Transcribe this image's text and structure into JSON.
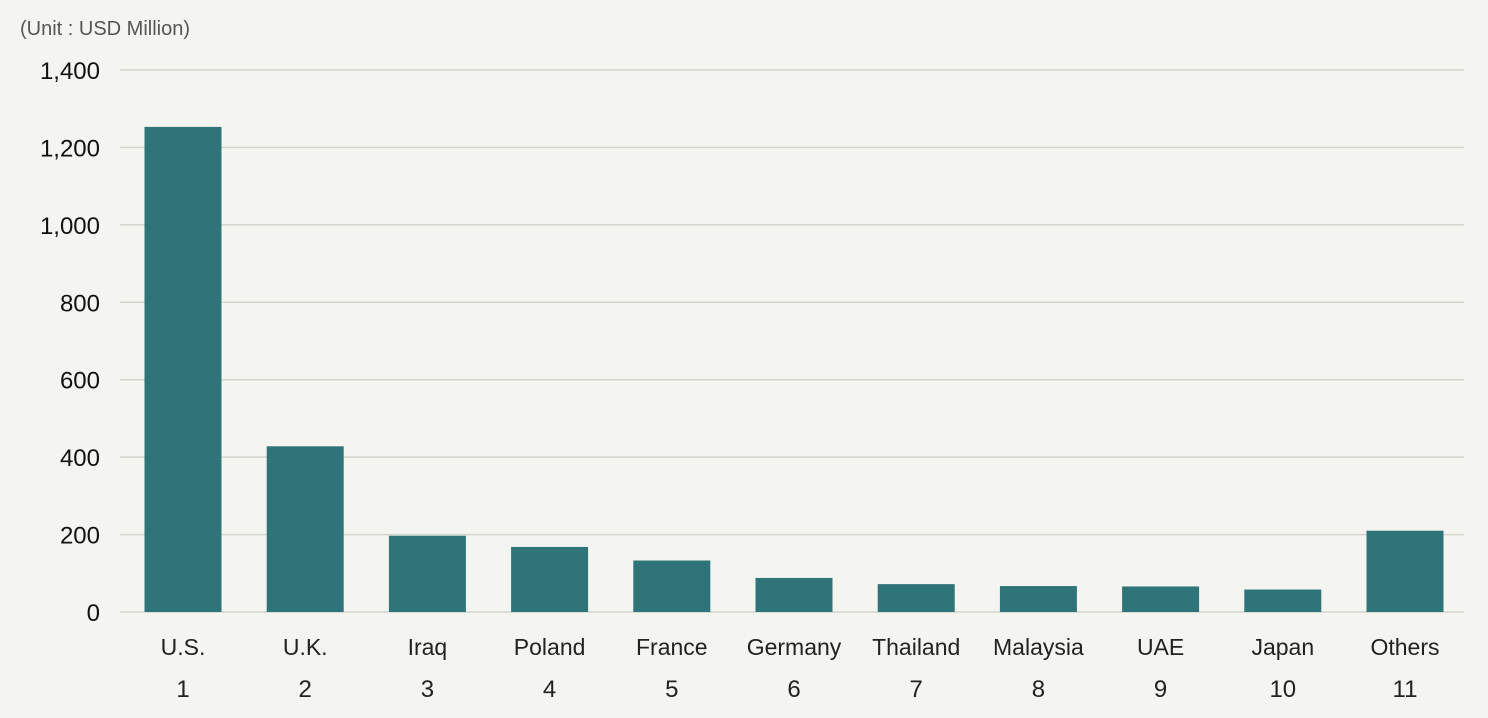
{
  "unit_label": "(Unit : USD Million)",
  "colors": {
    "bar": "#2f7478",
    "grid": "#d2d4cd",
    "background": "#f4f5f0"
  },
  "chart_data": {
    "type": "bar",
    "categories": [
      "U.S.",
      "U.K.",
      "Iraq",
      "Poland",
      "France",
      "Germany",
      "Thailand",
      "Malaysia",
      "UAE",
      "Japan",
      "Others"
    ],
    "ranks": [
      "1",
      "2",
      "3",
      "4",
      "5",
      "6",
      "7",
      "8",
      "9",
      "10",
      "11"
    ],
    "values": [
      1253,
      428,
      197,
      168,
      133,
      88,
      72,
      67,
      66,
      58,
      210
    ],
    "ylim": [
      0,
      1400
    ],
    "yticks": [
      0,
      200,
      400,
      600,
      800,
      1000,
      1200,
      1400
    ],
    "ytick_labels": [
      "0",
      "200",
      "400",
      "600",
      "800",
      "1,000",
      "1,200",
      "1,400"
    ],
    "grid": true,
    "legend": "none"
  }
}
